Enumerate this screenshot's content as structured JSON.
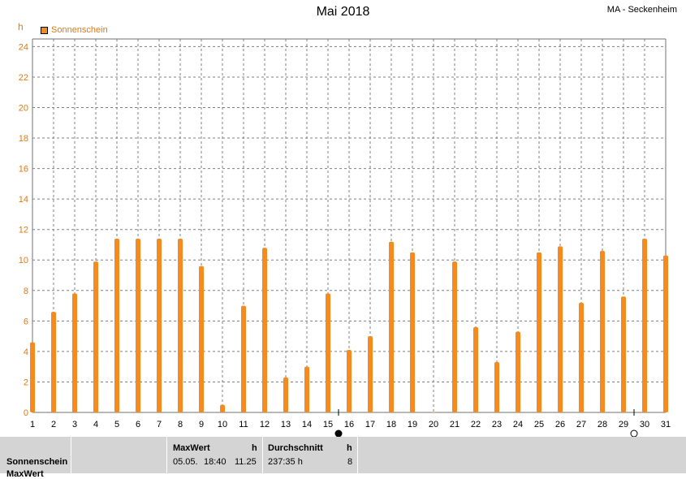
{
  "chart_data": {
    "type": "bar",
    "title": "Mai 2018",
    "station": "MA - Seckenheim",
    "unit": "h",
    "series": [
      {
        "name": "Sonnenschein",
        "values": [
          4.6,
          6.6,
          7.8,
          9.9,
          11.4,
          11.4,
          11.4,
          11.4,
          9.6,
          0.5,
          7.0,
          10.8,
          2.3,
          3.0,
          7.8,
          4.1,
          5.0,
          11.2,
          10.5,
          0.0,
          9.9,
          5.6,
          3.3,
          5.3,
          10.5,
          10.9,
          7.2,
          10.6,
          7.6,
          11.4,
          10.3
        ]
      }
    ],
    "categories": [
      "1",
      "2",
      "3",
      "4",
      "5",
      "6",
      "7",
      "8",
      "9",
      "10",
      "11",
      "12",
      "13",
      "14",
      "15",
      "16",
      "17",
      "18",
      "19",
      "20",
      "21",
      "22",
      "23",
      "24",
      "25",
      "26",
      "27",
      "28",
      "29",
      "30",
      "31"
    ],
    "yticks": [
      "0",
      "2",
      "4",
      "6",
      "8",
      "10",
      "12",
      "14",
      "16",
      "18",
      "20",
      "22",
      "24"
    ],
    "ylim": [
      0,
      24.5
    ],
    "grid": true,
    "legend_position": "top-left",
    "colors": {
      "bar": "#f58a1f",
      "axis_text": "#e07a10",
      "grid": "#808080"
    },
    "moon_markers": [
      {
        "day": 15.5,
        "icon": "new-moon-icon"
      },
      {
        "day": 29.5,
        "icon": "full-moon-icon"
      }
    ]
  },
  "footer": {
    "series_label": "Sonnenschein",
    "series_label_2": "MaxWert",
    "maxwert": {
      "header": "MaxWert",
      "unit": "h",
      "date": "05.05.",
      "time": "18:40",
      "value": "11.25"
    },
    "durchschnitt": {
      "header": "Durchschnitt",
      "unit": "h",
      "total": "237:35 h",
      "value": "8"
    }
  }
}
